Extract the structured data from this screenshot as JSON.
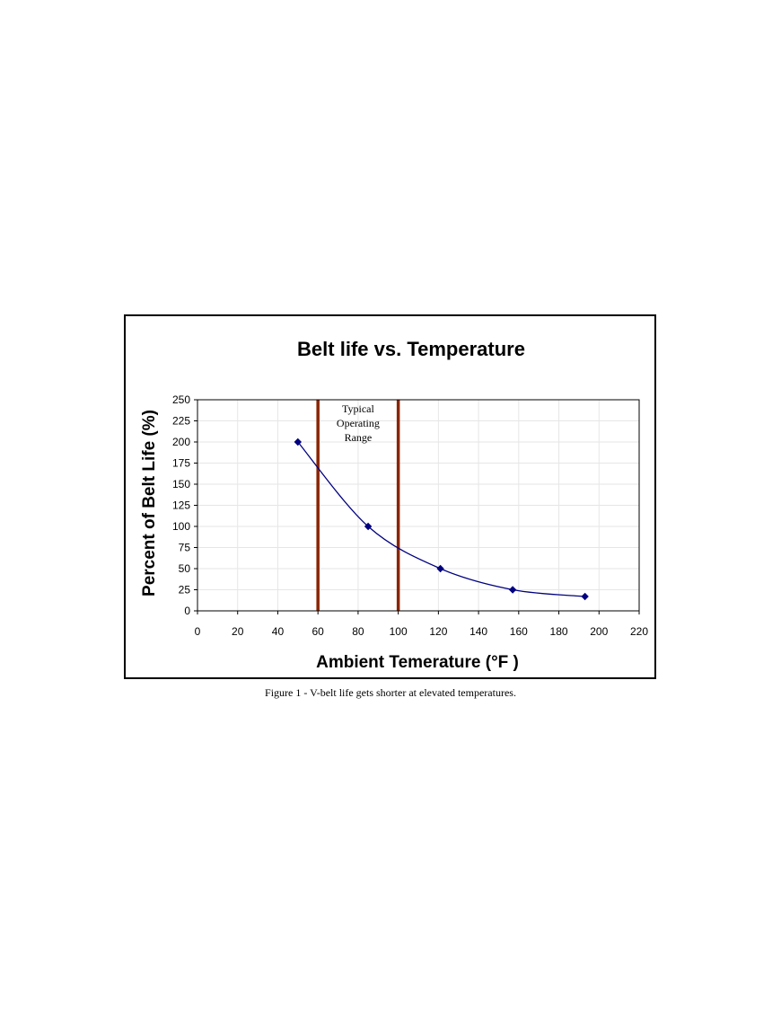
{
  "caption": "Figure 1 - V-belt life gets shorter at elevated temperatures.",
  "chart_data": {
    "type": "line",
    "title": "Belt life vs. Temperature",
    "xlabel": "Ambient Temerature (°F )",
    "ylabel": "Percent of Belt Life (%)",
    "xlim": [
      0,
      220
    ],
    "ylim": [
      0,
      250
    ],
    "x_ticks": [
      0,
      20,
      40,
      60,
      80,
      100,
      120,
      140,
      160,
      180,
      200,
      220
    ],
    "y_ticks": [
      0,
      25,
      50,
      75,
      100,
      125,
      150,
      175,
      200,
      225,
      250
    ],
    "grid": true,
    "legend": "none",
    "series": [
      {
        "x": [
          50,
          85,
          121,
          157,
          193
        ],
        "y": [
          200,
          100,
          50,
          25,
          17
        ],
        "color": "#000080",
        "marker": "diamond",
        "smooth": true
      }
    ],
    "vertical_lines": [
      {
        "x": 60,
        "color": "#8B2500"
      },
      {
        "x": 100,
        "color": "#8B2500"
      }
    ],
    "annotation": {
      "lines": [
        "Typical",
        "Operating",
        "Range"
      ],
      "x": 80,
      "y": 235
    }
  }
}
